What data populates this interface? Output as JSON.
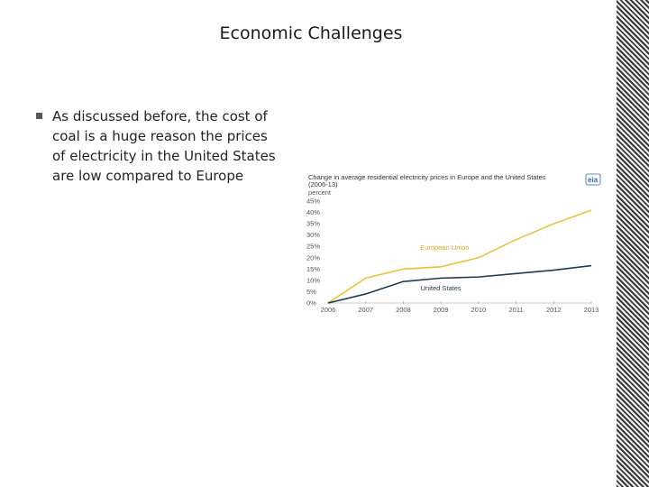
{
  "slide": {
    "title": "Economic Challenges",
    "bullet": "As discussed before, the cost of coal is a huge reason the prices of electricity in the United States are low compared to Europe"
  },
  "colors": {
    "european_union": "#e8c33a",
    "united_states": "#1d3b4f",
    "eu_label": "#d9a81e",
    "us_label": "#1d3b4f",
    "border_dark": "#3a3a3a",
    "axis": "#999999"
  },
  "chart_data": {
    "type": "line",
    "title": "Change in average residential electricity prices in Europe and the United States (2006-13)",
    "ylabel": "percent",
    "xlabel": "",
    "logo": "eia",
    "x": [
      2006,
      2007,
      2008,
      2009,
      2010,
      2011,
      2012,
      2013
    ],
    "x_tick_labels": [
      "2006",
      "2007",
      "2008",
      "2009",
      "2010",
      "2011",
      "2012",
      "2013"
    ],
    "y_tick_labels": [
      "0%",
      "5%",
      "10%",
      "15%",
      "20%",
      "25%",
      "30%",
      "35%",
      "40%",
      "45%"
    ],
    "ylim": [
      0,
      45
    ],
    "grid": false,
    "series": [
      {
        "name": "European Union",
        "values": [
          0,
          11,
          15,
          16,
          20,
          28,
          35,
          41
        ]
      },
      {
        "name": "United States",
        "values": [
          0,
          4,
          9.5,
          11,
          11.5,
          13,
          14.5,
          16.5
        ]
      }
    ]
  }
}
